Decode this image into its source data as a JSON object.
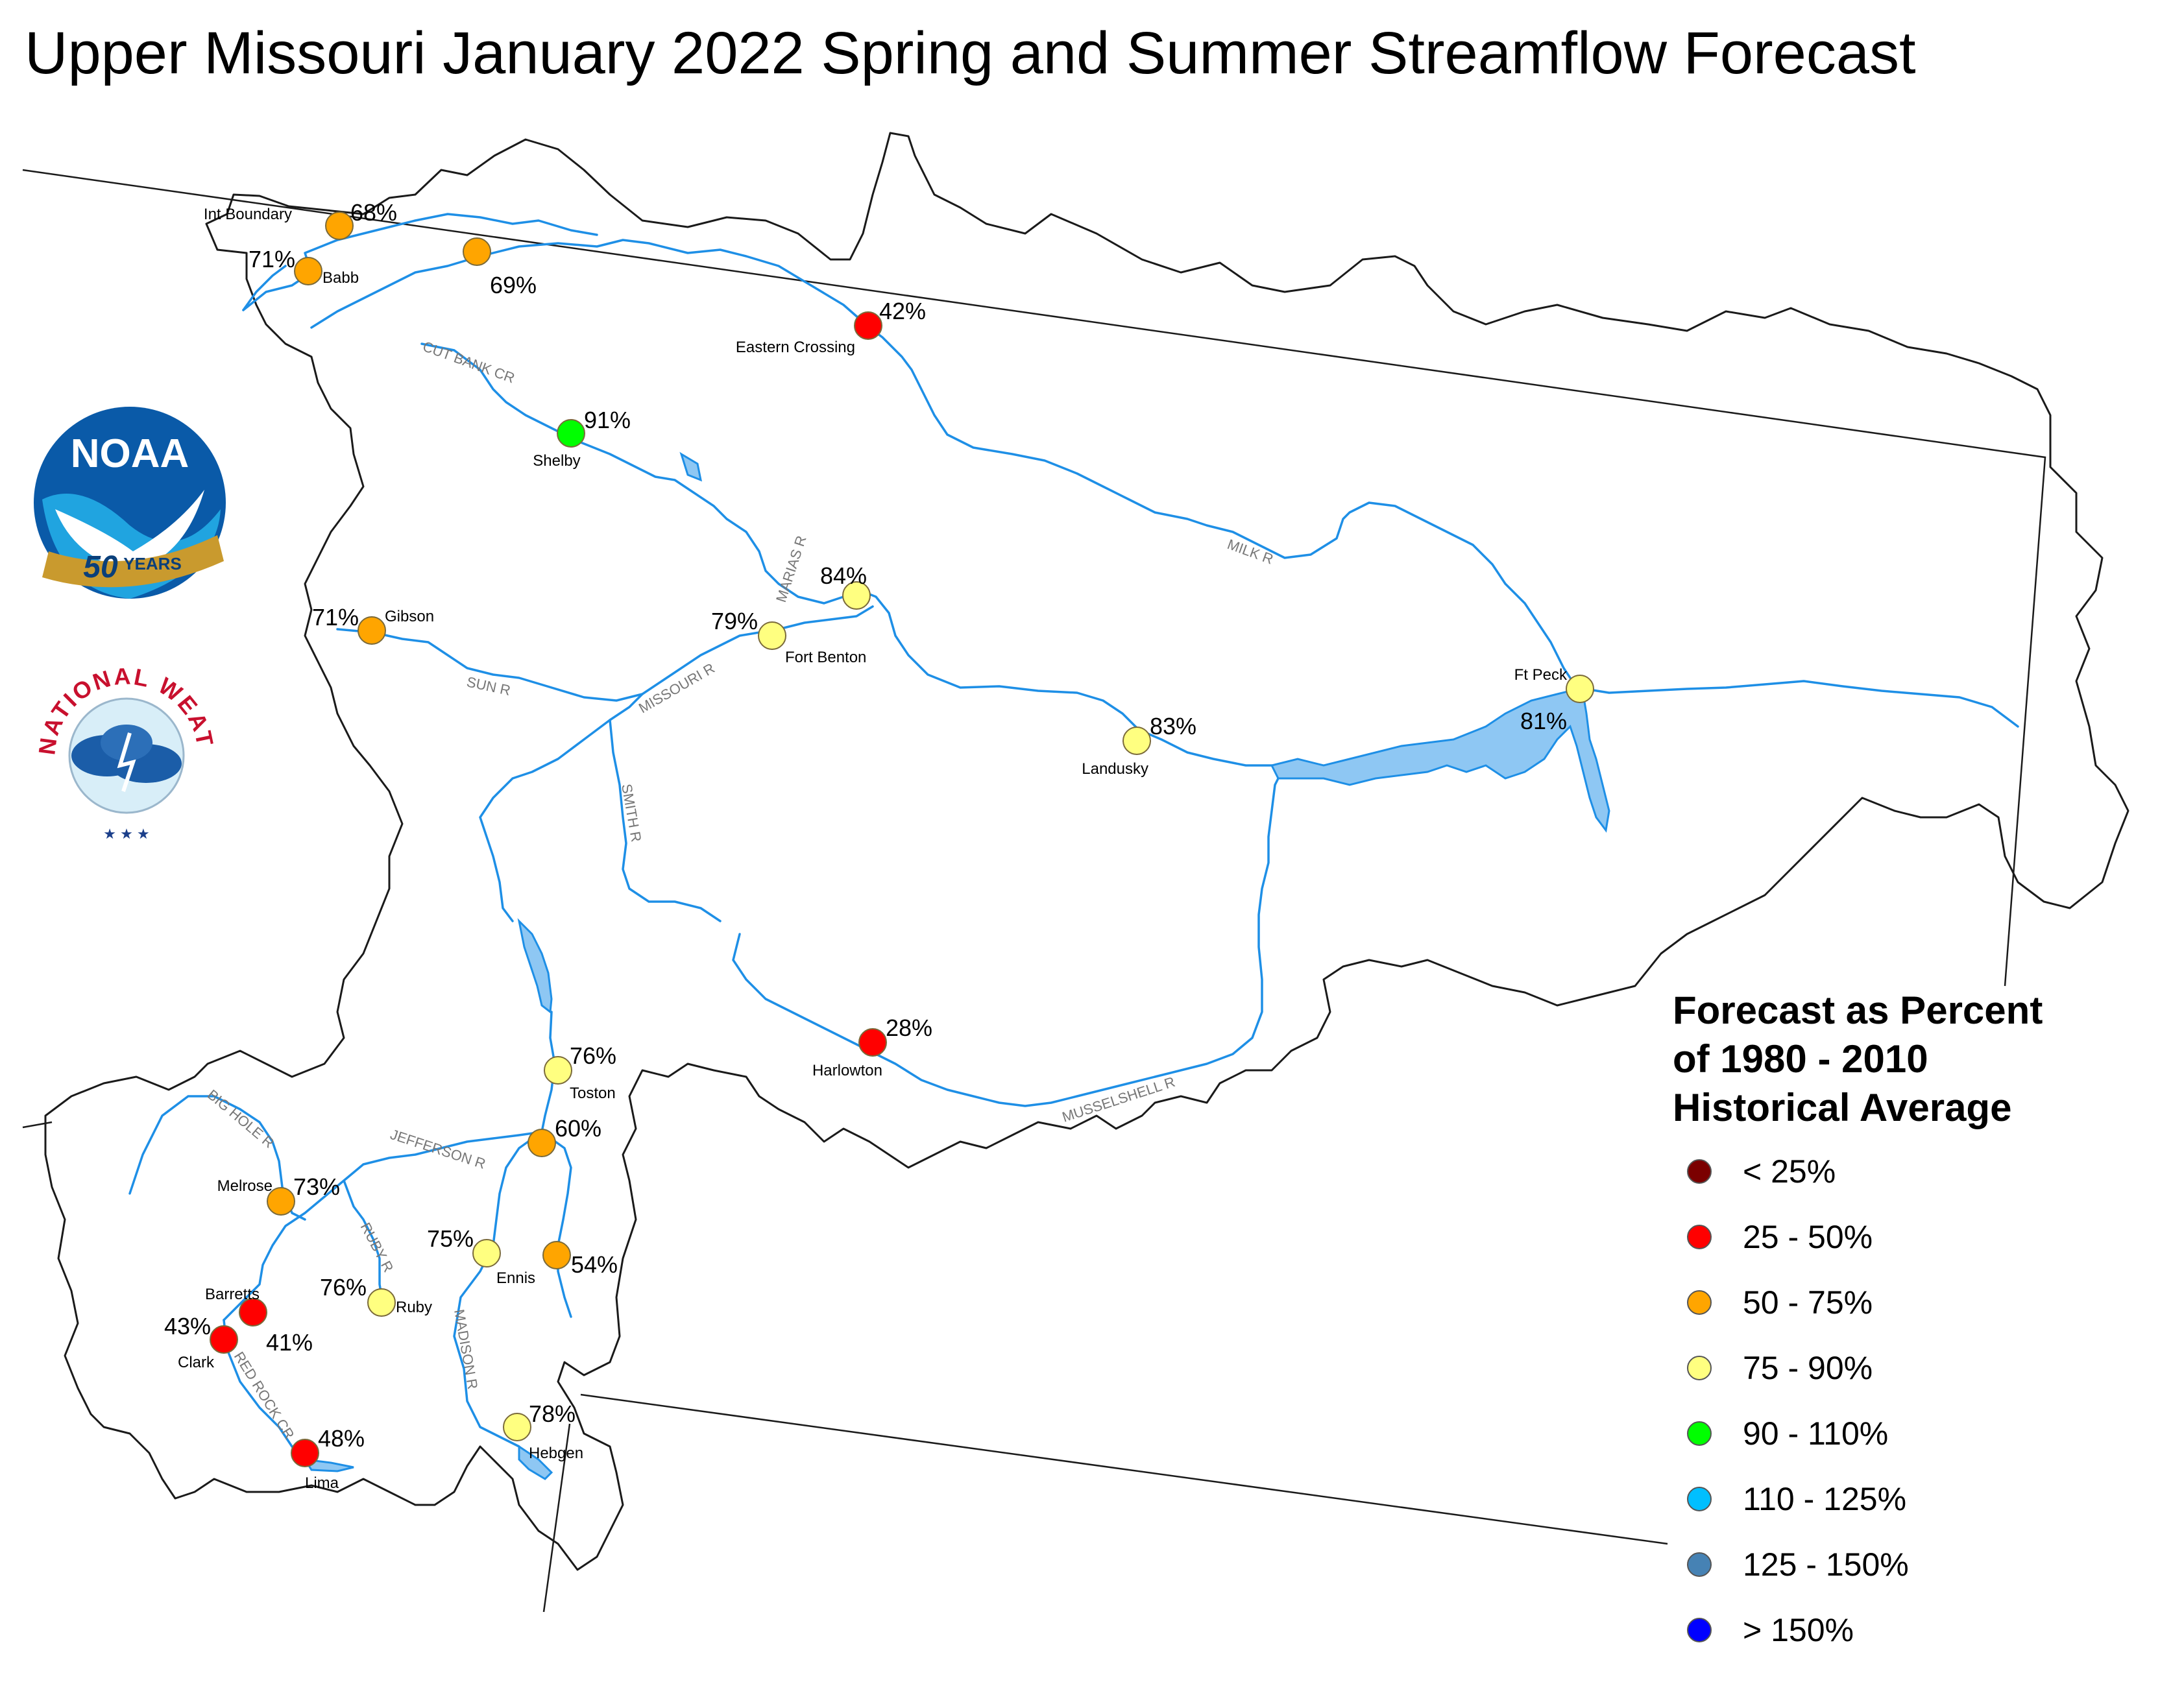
{
  "title": "Upper Missouri January 2022 Spring and Summer Streamflow Forecast",
  "legend": {
    "title_lines": [
      "Forecast as Percent",
      "of 1980 - 2010",
      "Historical Average"
    ],
    "items": [
      {
        "label": "< 25%",
        "color": "#7b0000"
      },
      {
        "label": "25 - 50%",
        "color": "#ff0000"
      },
      {
        "label": "50 - 75%",
        "color": "#ffa500"
      },
      {
        "label": "75 - 90%",
        "color": "#ffff80"
      },
      {
        "label": "90 - 110%",
        "color": "#00ff00"
      },
      {
        "label": "110 - 125%",
        "color": "#00bfff"
      },
      {
        "label": "125 - 150%",
        "color": "#4682b4"
      },
      {
        "label": "> 150%",
        "color": "#0000ff"
      }
    ]
  },
  "logos": {
    "noaa": {
      "text": "NOAA",
      "ribbon_number": "50",
      "ribbon_word": "YEARS"
    },
    "nws": {
      "text": "NATIONAL WEATHER SERVICE"
    }
  },
  "rivers": [
    "CUT BANK CR",
    "MARIAS R",
    "MILK R",
    "SUN R",
    "MISSOURI R",
    "SMITH R",
    "MUSSELSHELL R",
    "BIG HOLE R",
    "JEFFERSON R",
    "RUBY R",
    "MADISON R",
    "RED ROCK CR"
  ],
  "stations": [
    {
      "id": "int-boundary",
      "name": "Int Boundary",
      "pct": "68%",
      "color": "#ffa500"
    },
    {
      "id": "babb",
      "name": "Babb",
      "pct": "71%",
      "color": "#ffa500"
    },
    {
      "id": "milk-upper",
      "name": "",
      "pct": "69%",
      "color": "#ffa500"
    },
    {
      "id": "eastern-crossing",
      "name": "Eastern Crossing",
      "pct": "42%",
      "color": "#ff0000"
    },
    {
      "id": "shelby",
      "name": "Shelby",
      "pct": "91%",
      "color": "#00ff00"
    },
    {
      "id": "marias-mouth",
      "name": "",
      "pct": "84%",
      "color": "#ffff80"
    },
    {
      "id": "fort-benton",
      "name": "Fort Benton",
      "pct": "79%",
      "color": "#ffff80"
    },
    {
      "id": "gibson",
      "name": "Gibson",
      "pct": "71%",
      "color": "#ffa500"
    },
    {
      "id": "landusky",
      "name": "Landusky",
      "pct": "83%",
      "color": "#ffff80"
    },
    {
      "id": "ft-peck",
      "name": "Ft Peck",
      "pct": "81%",
      "color": "#ffff80"
    },
    {
      "id": "harlowton",
      "name": "Harlowton",
      "pct": "28%",
      "color": "#ff0000"
    },
    {
      "id": "toston",
      "name": "Toston",
      "pct": "76%",
      "color": "#ffff80"
    },
    {
      "id": "gallatin",
      "name": "",
      "pct": "60%",
      "color": "#ffa500"
    },
    {
      "id": "melrose",
      "name": "Melrose",
      "pct": "73%",
      "color": "#ffa500"
    },
    {
      "id": "ennis",
      "name": "Ennis",
      "pct": "75%",
      "color": "#ffff80"
    },
    {
      "id": "gallatin-upper",
      "name": "",
      "pct": "54%",
      "color": "#ffa500"
    },
    {
      "id": "barretts",
      "name": "Barretts",
      "pct": "41%",
      "color": "#ff0000"
    },
    {
      "id": "ruby",
      "name": "Ruby",
      "pct": "76%",
      "color": "#ffff80"
    },
    {
      "id": "clark",
      "name": "Clark",
      "pct": "43%",
      "color": "#ff0000"
    },
    {
      "id": "lima",
      "name": "Lima",
      "pct": "48%",
      "color": "#ff0000"
    },
    {
      "id": "hebgen",
      "name": "Hebgen",
      "pct": "78%",
      "color": "#ffff80"
    }
  ]
}
